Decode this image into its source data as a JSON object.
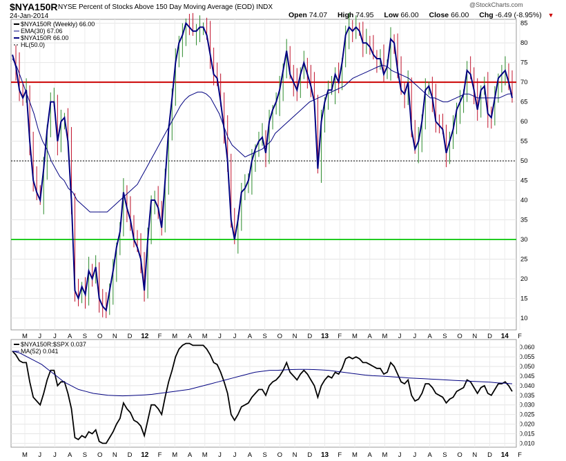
{
  "header": {
    "symbol": "$NYA150R",
    "description": "NYSE Percent of Stocks Above 150 Day Moving Average (EOD)  INDX",
    "brand": "@StockCharts.com",
    "date": "24-Jan-2014",
    "open_label": "Open",
    "open": "74.07",
    "high_label": "High",
    "high": "74.95",
    "low_label": "Low",
    "low": "66.00",
    "close_label": "Close",
    "close": "66.00",
    "chg_label": "Chg",
    "chg": "-6.49 (-8.95%)",
    "chg_arrow": "▼"
  },
  "colors": {
    "price": "#000080",
    "up_bar": "#2a8a2a",
    "down_bar": "#c0102a",
    "ema": "#000080",
    "red_line": "#cc0000",
    "green_line": "#22cc22",
    "ratio": "#000000",
    "ma": "#000080"
  },
  "chart_data": [
    {
      "type": "line",
      "title": "$NYA150R (Weekly) 66.00",
      "legend": [
        "$NYA150R (Weekly) 66.00",
        "EMA(30) 67.06",
        "$NYA150R 66.00",
        "HL(50.0)"
      ],
      "legend_placement": "top-left",
      "ylim": [
        7,
        86
      ],
      "yticks": [
        10,
        15,
        20,
        25,
        30,
        35,
        40,
        45,
        50,
        55,
        60,
        65,
        70,
        75,
        80,
        85
      ],
      "xtick_labels": [
        "M",
        "J",
        "J",
        "A",
        "S",
        "O",
        "N",
        "D",
        "12",
        "F",
        "M",
        "A",
        "M",
        "J",
        "J",
        "A",
        "S",
        "O",
        "N",
        "D",
        "13",
        "F",
        "M",
        "A",
        "M",
        "J",
        "J",
        "A",
        "S",
        "O",
        "N",
        "D",
        "14",
        "F"
      ],
      "bold_xticks": [
        "12",
        "13",
        "14"
      ],
      "horizontal_lines": [
        {
          "value": 70,
          "color": "red"
        },
        {
          "value": 50,
          "style": "dotted",
          "label": "HL(50.0)"
        },
        {
          "value": 30,
          "color": "green"
        }
      ],
      "weeks": 145,
      "series": [
        {
          "name": "$NYA150R",
          "values": [
            77,
            74,
            68,
            66,
            68,
            55,
            45,
            42,
            40,
            48,
            58,
            65,
            65,
            55,
            60,
            61,
            55,
            40,
            17,
            15,
            18,
            16,
            22,
            20,
            23,
            15,
            13,
            12,
            17,
            22,
            28,
            32,
            42,
            38,
            35,
            30,
            28,
            25,
            17,
            30,
            40,
            40,
            38,
            33,
            45,
            58,
            66,
            75,
            80,
            82,
            85,
            84,
            83,
            83,
            84,
            84,
            82,
            77,
            72,
            71,
            65,
            58,
            50,
            35,
            30,
            35,
            42,
            43,
            45,
            50,
            53,
            55,
            56,
            52,
            60,
            63,
            65,
            68,
            73,
            78,
            72,
            70,
            68,
            72,
            75,
            72,
            69,
            65,
            48,
            60,
            65,
            68,
            68,
            72,
            70,
            75,
            82,
            84,
            83,
            84,
            83,
            80,
            80,
            79,
            77,
            76,
            76,
            72,
            74,
            81,
            80,
            73,
            68,
            67,
            70,
            58,
            53,
            55,
            60,
            68,
            69,
            66,
            60,
            59,
            58,
            52,
            55,
            58,
            63,
            65,
            67,
            73,
            72,
            68,
            63,
            68,
            69,
            62,
            61,
            66,
            71,
            72,
            73,
            70,
            66
          ]
        },
        {
          "name": "EMA(30)",
          "values": [
            76,
            74,
            71,
            68,
            65,
            62,
            58,
            55,
            53,
            50,
            48,
            46,
            45,
            43,
            42,
            40,
            39,
            38,
            37,
            37,
            37,
            37,
            37,
            38,
            39,
            40,
            41,
            42,
            43,
            44,
            46,
            48,
            50,
            52,
            54,
            56,
            58,
            60,
            62,
            64,
            65.5,
            66.5,
            67,
            67.5,
            67.5,
            67,
            66,
            64,
            62,
            59,
            56,
            54,
            53,
            52,
            51,
            51.5,
            52,
            52.5,
            53,
            54,
            55,
            57,
            58,
            59,
            60,
            61,
            62,
            63,
            64,
            65,
            65.5,
            66,
            66.5,
            67,
            67.5,
            68,
            68.5,
            69,
            70,
            71,
            71.5,
            72,
            72.5,
            73,
            73.5,
            74,
            74.3,
            74,
            73,
            72.5,
            72,
            71.5,
            71,
            70,
            69,
            68,
            67,
            66,
            66,
            65.5,
            65,
            65,
            65.5,
            66,
            66.5,
            67,
            67,
            66.5,
            66,
            66,
            66,
            66,
            66,
            66,
            66.5,
            67,
            67.06
          ]
        }
      ]
    },
    {
      "type": "line",
      "title": "$NYA150R:$SPX 0.037",
      "legend": [
        "$NYA150R:$SPX 0.037",
        "MA(52) 0.041"
      ],
      "legend_placement": "top-left",
      "ylim": [
        0.008,
        0.064
      ],
      "yticks": [
        0.01,
        0.015,
        0.02,
        0.025,
        0.03,
        0.035,
        0.04,
        0.045,
        0.05,
        0.055,
        0.06
      ],
      "ytick_labels": [
        "0.010",
        "0.015",
        "0.020",
        "0.025",
        "0.030",
        "0.035",
        "0.040",
        "0.045",
        "0.050",
        "0.055",
        "0.060"
      ],
      "xtick_labels": [
        "M",
        "J",
        "J",
        "A",
        "S",
        "O",
        "N",
        "D",
        "12",
        "F",
        "M",
        "A",
        "M",
        "J",
        "J",
        "A",
        "S",
        "O",
        "N",
        "D",
        "13",
        "F",
        "M",
        "A",
        "M",
        "J",
        "J",
        "A",
        "S",
        "O",
        "N",
        "D",
        "14",
        "F"
      ],
      "series": [
        {
          "name": "$NYA150R:$SPX",
          "values": [
            0.058,
            0.056,
            0.053,
            0.052,
            0.052,
            0.042,
            0.034,
            0.032,
            0.03,
            0.036,
            0.043,
            0.048,
            0.048,
            0.04,
            0.042,
            0.042,
            0.036,
            0.028,
            0.013,
            0.012,
            0.014,
            0.013,
            0.016,
            0.015,
            0.017,
            0.011,
            0.01,
            0.01,
            0.013,
            0.016,
            0.02,
            0.023,
            0.031,
            0.028,
            0.026,
            0.022,
            0.021,
            0.019,
            0.014,
            0.022,
            0.03,
            0.03,
            0.028,
            0.025,
            0.034,
            0.042,
            0.048,
            0.055,
            0.059,
            0.061,
            0.062,
            0.062,
            0.061,
            0.061,
            0.061,
            0.061,
            0.059,
            0.056,
            0.052,
            0.051,
            0.047,
            0.042,
            0.036,
            0.025,
            0.022,
            0.025,
            0.029,
            0.03,
            0.031,
            0.034,
            0.036,
            0.038,
            0.038,
            0.035,
            0.04,
            0.042,
            0.043,
            0.045,
            0.048,
            0.052,
            0.047,
            0.045,
            0.043,
            0.046,
            0.048,
            0.046,
            0.043,
            0.04,
            0.034,
            0.04,
            0.043,
            0.045,
            0.044,
            0.047,
            0.046,
            0.049,
            0.054,
            0.055,
            0.054,
            0.055,
            0.054,
            0.052,
            0.052,
            0.051,
            0.05,
            0.049,
            0.049,
            0.046,
            0.047,
            0.052,
            0.05,
            0.046,
            0.042,
            0.041,
            0.043,
            0.035,
            0.032,
            0.033,
            0.036,
            0.041,
            0.041,
            0.039,
            0.036,
            0.035,
            0.034,
            0.031,
            0.033,
            0.034,
            0.037,
            0.038,
            0.039,
            0.043,
            0.042,
            0.039,
            0.036,
            0.039,
            0.04,
            0.036,
            0.035,
            0.038,
            0.041,
            0.041,
            0.042,
            0.04,
            0.037
          ]
        },
        {
          "name": "MA(52)",
          "values": [
            0.058,
            0.057,
            0.055,
            0.053,
            0.051,
            0.048,
            0.045,
            0.042,
            0.04,
            0.038,
            0.037,
            0.036,
            0.0355,
            0.035,
            0.0348,
            0.0347,
            0.0348,
            0.035,
            0.0352,
            0.0355,
            0.036,
            0.0365,
            0.037,
            0.0375,
            0.038,
            0.039,
            0.04,
            0.041,
            0.042,
            0.043,
            0.044,
            0.045,
            0.046,
            0.047,
            0.0475,
            0.048,
            0.048,
            0.0482,
            0.0484,
            0.0485,
            0.0485,
            0.0484,
            0.0482,
            0.048,
            0.0475,
            0.047,
            0.0465,
            0.046,
            0.0455,
            0.0452,
            0.045,
            0.0448,
            0.0445,
            0.0443,
            0.044,
            0.0438,
            0.0436,
            0.0434,
            0.0432,
            0.043,
            0.0428,
            0.0426,
            0.0424,
            0.0422,
            0.042,
            0.0418,
            0.0415,
            0.0413,
            0.041
          ]
        }
      ]
    }
  ]
}
